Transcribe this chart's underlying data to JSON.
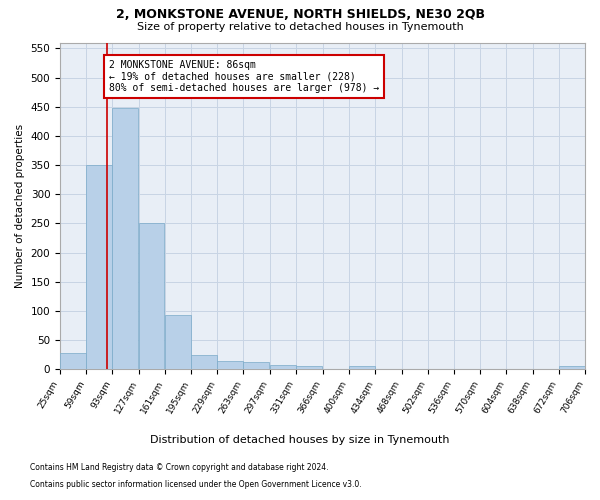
{
  "title1": "2, MONKSTONE AVENUE, NORTH SHIELDS, NE30 2QB",
  "title2": "Size of property relative to detached houses in Tynemouth",
  "xlabel": "Distribution of detached houses by size in Tynemouth",
  "ylabel": "Number of detached properties",
  "footnote1": "Contains HM Land Registry data © Crown copyright and database right 2024.",
  "footnote2": "Contains public sector information licensed under the Open Government Licence v3.0.",
  "bar_color": "#b8d0e8",
  "bar_edge_color": "#7aaac8",
  "grid_color": "#c8d4e4",
  "background_color": "#e8eef6",
  "annotation_box_color": "#cc0000",
  "property_line_color": "#cc0000",
  "property_size": 86,
  "annotation_text": "2 MONKSTONE AVENUE: 86sqm\n← 19% of detached houses are smaller (228)\n80% of semi-detached houses are larger (978) →",
  "bin_edges": [
    25,
    59,
    93,
    127,
    161,
    195,
    229,
    263,
    297,
    331,
    366,
    400,
    434,
    468,
    502,
    536,
    570,
    604,
    638,
    672,
    706
  ],
  "bar_heights": [
    28,
    350,
    447,
    250,
    93,
    24,
    15,
    12,
    7,
    6,
    0,
    5,
    0,
    0,
    0,
    0,
    0,
    0,
    0,
    5
  ],
  "ylim": [
    0,
    560
  ],
  "yticks": [
    0,
    50,
    100,
    150,
    200,
    250,
    300,
    350,
    400,
    450,
    500,
    550
  ]
}
